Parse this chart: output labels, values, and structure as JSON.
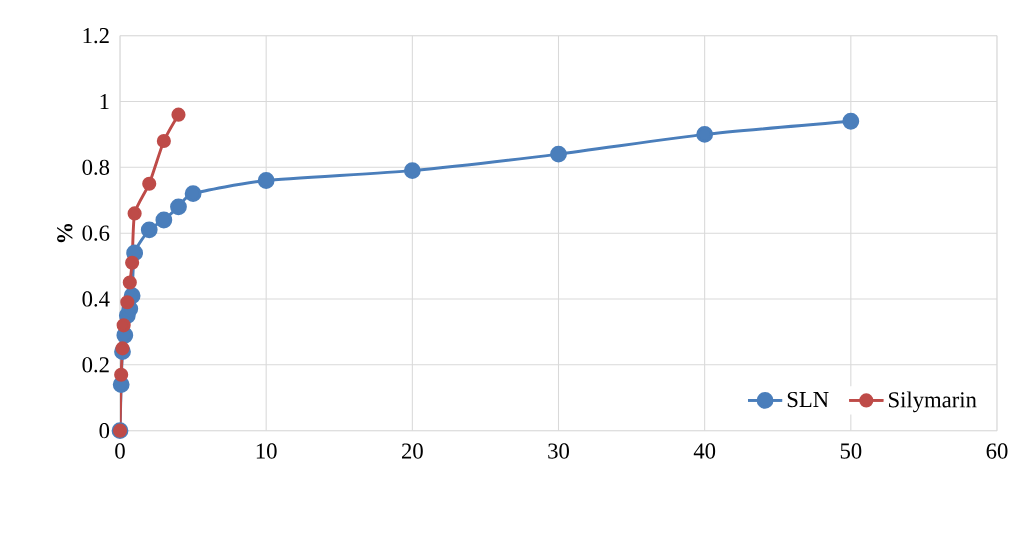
{
  "chart_data": {
    "type": "line",
    "ylabel": "%",
    "series": [
      {
        "name": "SLN",
        "color": "#4a7ebb",
        "x": [
          0,
          0.08,
          0.17,
          0.33,
          0.5,
          0.67,
          0.83,
          1,
          2,
          3,
          4,
          5,
          10,
          20,
          30,
          40,
          50
        ],
        "values": [
          0,
          0.14,
          0.24,
          0.29,
          0.35,
          0.37,
          0.41,
          0.54,
          0.61,
          0.64,
          0.68,
          0.72,
          0.76,
          0.79,
          0.84,
          0.9,
          0.94
        ]
      },
      {
        "name": "Silymarin",
        "color": "#be4b48",
        "x": [
          0,
          0.08,
          0.17,
          0.25,
          0.5,
          0.67,
          0.83,
          1,
          2,
          3,
          4
        ],
        "values": [
          0,
          0.17,
          0.25,
          0.32,
          0.39,
          0.45,
          0.51,
          0.66,
          0.75,
          0.88,
          0.96
        ]
      }
    ],
    "xlim": [
      0,
      60
    ],
    "xticks": [
      0,
      10,
      20,
      30,
      40,
      50,
      60
    ],
    "ylim": [
      0,
      1.2
    ],
    "yticks": [
      0,
      0.2,
      0.4,
      0.6,
      0.8,
      1,
      1.2
    ],
    "grid": true,
    "legend": "bottom right",
    "marker": "circle",
    "line_style": "solid"
  }
}
